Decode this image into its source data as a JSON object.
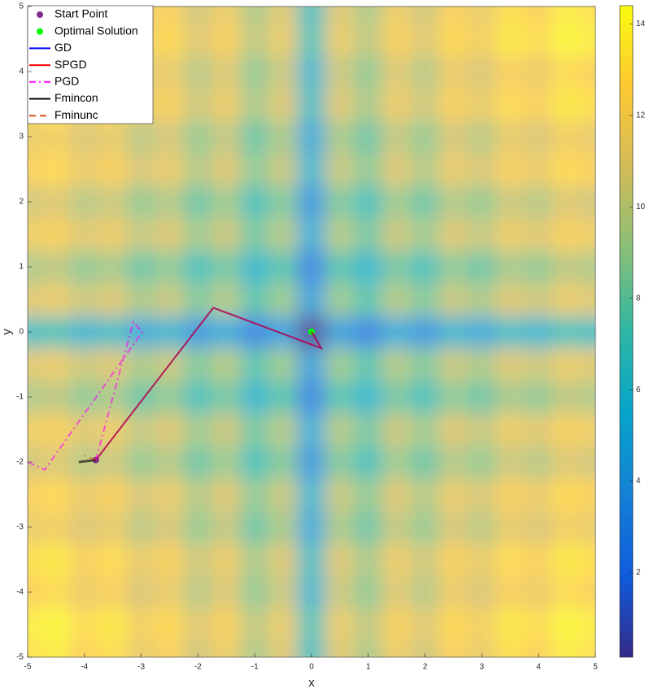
{
  "chart_data": {
    "type": "heatmap",
    "xlabel": "x",
    "ylabel": "y",
    "xlim": [
      -5,
      5
    ],
    "ylim": [
      -5,
      5
    ],
    "xticks": [
      -5,
      -4,
      -3,
      -2,
      -1,
      0,
      1,
      2,
      3,
      4,
      5
    ],
    "yticks": [
      -5,
      -4,
      -3,
      -2,
      -1,
      0,
      1,
      2,
      3,
      4,
      5
    ],
    "colormap": "parula",
    "clim": [
      0.15,
      14.4
    ],
    "cticks": [
      2,
      4,
      6,
      8,
      10,
      12,
      14
    ],
    "legend": "upper left",
    "heatmap": {
      "x": [
        -5,
        -4.5,
        -4,
        -3.5,
        -3,
        -2.5,
        -2,
        -1.5,
        -1,
        -0.5,
        0,
        0.5,
        1,
        1.5,
        2,
        2.5,
        3,
        3.5,
        4,
        4.5,
        5
      ],
      "y": [
        -5,
        -4.5,
        -4,
        -3.5,
        -3,
        -2.5,
        -2,
        -1.5,
        -1,
        -0.5,
        0,
        0.5,
        1,
        1.5,
        2,
        2.5,
        3,
        3.5,
        4,
        4.5,
        5
      ],
      "z": [
        [
          13.2,
          13.7,
          12.5,
          13.1,
          11.6,
          12.4,
          10.6,
          11.8,
          9.6,
          11.1,
          6.6,
          11.1,
          9.6,
          11.8,
          10.6,
          12.4,
          11.6,
          13.1,
          12.5,
          13.7,
          13.2
        ],
        [
          13.7,
          14.2,
          13.0,
          13.6,
          12.1,
          12.9,
          11.1,
          12.3,
          10.1,
          11.6,
          7.1,
          11.6,
          10.1,
          12.3,
          11.1,
          12.9,
          12.1,
          13.6,
          13.0,
          14.2,
          13.7
        ],
        [
          12.5,
          13.0,
          11.8,
          12.4,
          10.9,
          11.7,
          9.9,
          11.1,
          8.9,
          10.4,
          5.9,
          10.4,
          8.9,
          11.1,
          9.9,
          11.7,
          10.9,
          12.4,
          11.8,
          13.0,
          12.5
        ],
        [
          13.1,
          13.6,
          12.4,
          13.0,
          11.5,
          12.3,
          10.5,
          11.7,
          9.5,
          11.0,
          6.5,
          11.0,
          9.5,
          11.7,
          10.5,
          12.3,
          11.5,
          13.0,
          12.4,
          13.6,
          13.1
        ],
        [
          11.6,
          12.1,
          10.9,
          11.5,
          10.0,
          10.8,
          9.0,
          10.2,
          8.0,
          9.5,
          5.0,
          9.5,
          8.0,
          10.2,
          9.0,
          10.8,
          10.0,
          11.5,
          10.9,
          12.1,
          11.6
        ],
        [
          12.4,
          12.9,
          11.7,
          12.3,
          10.8,
          11.6,
          9.8,
          11.0,
          8.8,
          10.3,
          5.8,
          10.3,
          8.8,
          11.0,
          9.8,
          11.6,
          10.8,
          12.3,
          11.7,
          12.9,
          12.4
        ],
        [
          10.6,
          11.1,
          9.9,
          10.5,
          9.0,
          9.8,
          8.0,
          9.2,
          7.0,
          8.5,
          4.0,
          8.5,
          7.0,
          9.2,
          8.0,
          9.8,
          9.0,
          10.5,
          9.9,
          11.1,
          10.6
        ],
        [
          11.8,
          12.3,
          11.1,
          11.7,
          10.2,
          11.0,
          9.2,
          10.4,
          8.2,
          9.7,
          5.2,
          9.7,
          8.2,
          10.4,
          9.2,
          11.0,
          10.2,
          11.7,
          11.1,
          12.3,
          11.8
        ],
        [
          9.6,
          10.1,
          8.9,
          9.5,
          8.0,
          8.8,
          7.0,
          8.2,
          6.0,
          7.5,
          3.0,
          7.5,
          6.0,
          8.2,
          7.0,
          8.8,
          8.0,
          9.5,
          8.9,
          10.1,
          9.6
        ],
        [
          11.1,
          11.6,
          10.4,
          11.0,
          9.5,
          10.3,
          8.5,
          9.7,
          7.5,
          9.0,
          4.5,
          9.0,
          7.5,
          9.7,
          8.5,
          10.3,
          9.5,
          11.0,
          10.4,
          11.6,
          11.1
        ],
        [
          6.6,
          7.1,
          5.9,
          6.5,
          5.0,
          5.8,
          4.0,
          5.2,
          3.0,
          4.5,
          0,
          4.5,
          3.0,
          5.2,
          4.0,
          5.8,
          5.0,
          6.5,
          5.9,
          7.1,
          6.6
        ],
        [
          11.1,
          11.6,
          10.4,
          11.0,
          9.5,
          10.3,
          8.5,
          9.7,
          7.5,
          9.0,
          4.5,
          9.0,
          7.5,
          9.7,
          8.5,
          10.3,
          9.5,
          11.0,
          10.4,
          11.6,
          11.1
        ],
        [
          9.6,
          10.1,
          8.9,
          9.5,
          8.0,
          8.8,
          7.0,
          8.2,
          6.0,
          7.5,
          3.0,
          7.5,
          6.0,
          8.2,
          7.0,
          8.8,
          8.0,
          9.5,
          8.9,
          10.1,
          9.6
        ],
        [
          11.8,
          12.3,
          11.1,
          11.7,
          10.2,
          11.0,
          9.2,
          10.4,
          8.2,
          9.7,
          5.2,
          9.7,
          8.2,
          10.4,
          9.2,
          11.0,
          10.2,
          11.7,
          11.1,
          12.3,
          11.8
        ],
        [
          10.6,
          11.1,
          9.9,
          10.5,
          9.0,
          9.8,
          8.0,
          9.2,
          7.0,
          8.5,
          4.0,
          8.5,
          7.0,
          9.2,
          8.0,
          9.8,
          9.0,
          10.5,
          9.9,
          11.1,
          10.6
        ],
        [
          12.4,
          12.9,
          11.7,
          12.3,
          10.8,
          11.6,
          9.8,
          11.0,
          8.8,
          10.3,
          5.8,
          10.3,
          8.8,
          11.0,
          9.8,
          11.6,
          10.8,
          12.3,
          11.7,
          12.9,
          12.4
        ],
        [
          11.6,
          12.1,
          10.9,
          11.5,
          10.0,
          10.8,
          9.0,
          10.2,
          8.0,
          9.5,
          5.0,
          9.5,
          8.0,
          10.2,
          9.0,
          10.8,
          10.0,
          11.5,
          10.9,
          12.1,
          11.6
        ],
        [
          13.1,
          13.6,
          12.4,
          13.0,
          11.5,
          12.3,
          10.5,
          11.7,
          9.5,
          11.0,
          6.5,
          11.0,
          9.5,
          11.7,
          10.5,
          12.3,
          11.5,
          13.0,
          12.4,
          13.6,
          13.1
        ],
        [
          12.5,
          13.0,
          11.8,
          12.4,
          10.9,
          11.7,
          9.9,
          11.1,
          8.9,
          10.4,
          5.9,
          10.4,
          8.9,
          11.1,
          9.9,
          11.7,
          10.9,
          12.4,
          11.8,
          13.0,
          12.5
        ],
        [
          13.7,
          14.2,
          13.0,
          13.6,
          12.1,
          12.9,
          11.1,
          12.3,
          10.1,
          11.6,
          7.1,
          11.6,
          10.1,
          12.3,
          11.1,
          12.9,
          12.1,
          13.6,
          13.0,
          14.2,
          13.7
        ],
        [
          13.2,
          13.7,
          12.5,
          13.1,
          11.6,
          12.4,
          10.6,
          11.8,
          9.6,
          11.1,
          6.6,
          11.1,
          9.6,
          11.8,
          10.6,
          12.4,
          11.6,
          13.1,
          12.5,
          13.7,
          13.2
        ]
      ]
    },
    "series": [
      {
        "name": "Start Point",
        "color": "#7e2f8e",
        "marker": "dot",
        "x": [
          -3.8
        ],
        "y": [
          -1.97
        ]
      },
      {
        "name": "Optimal Solution",
        "color": "#00ff00",
        "marker": "dot",
        "x": [
          0
        ],
        "y": [
          0
        ]
      },
      {
        "name": "GD",
        "color": "#0000ff",
        "style": "solid",
        "x": [
          -3.8,
          -1.73,
          0.17,
          0
        ],
        "y": [
          -1.97,
          0.37,
          -0.25,
          0
        ]
      },
      {
        "name": "SPGD",
        "color": "#ff0000",
        "style": "solid",
        "x": [
          -3.8,
          -1.73,
          0.17,
          0
        ],
        "y": [
          -1.97,
          0.37,
          -0.25,
          0
        ]
      },
      {
        "name": "PGD",
        "color": "#ff00ff",
        "style": "dashdot",
        "x": [
          -3.8,
          -3.14,
          -2.98,
          -4.7,
          -5
        ],
        "y": [
          -1.97,
          0.15,
          0,
          -2.12,
          -2.0
        ]
      },
      {
        "name": "Fmincon",
        "color": "#000000",
        "style": "solid",
        "x": [
          -4.1,
          -3.8
        ],
        "y": [
          -2.0,
          -1.97
        ]
      },
      {
        "name": "Fminunc",
        "color": "#d95319",
        "style": "dashed",
        "x": [
          -3.8,
          -4.0
        ],
        "y": [
          -1.97,
          -1.9
        ]
      }
    ]
  }
}
